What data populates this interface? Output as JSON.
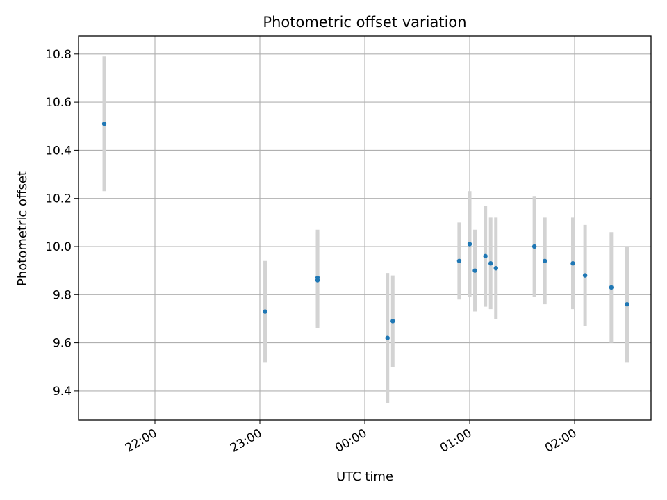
{
  "chart_data": {
    "type": "scatter",
    "title": "Photometric offset variation",
    "xlabel": "UTC time",
    "ylabel": "Photometric offset",
    "x_ticks": [
      "22:00",
      "23:00",
      "00:00",
      "01:00",
      "02:00"
    ],
    "y_ticks": [
      "9.4",
      "9.6",
      "9.8",
      "10.0",
      "10.2",
      "10.4",
      "10.6",
      "10.8"
    ],
    "grid": true,
    "point_color": "#1f77b4",
    "errorbar_color": "#d3d3d3",
    "points": [
      {
        "x": "21:31",
        "y": 10.51,
        "err": 0.28
      },
      {
        "x": "23:03",
        "y": 9.73,
        "err": 0.21
      },
      {
        "x": "23:33",
        "y": 9.87,
        "err": 0.2
      },
      {
        "x": "23:33",
        "y": 9.86,
        "err": 0.2
      },
      {
        "x": "00:13",
        "y": 9.62,
        "err": 0.27
      },
      {
        "x": "00:16",
        "y": 9.69,
        "err": 0.19
      },
      {
        "x": "00:54",
        "y": 9.94,
        "err": 0.16
      },
      {
        "x": "01:00",
        "y": 10.01,
        "err": 0.22
      },
      {
        "x": "01:03",
        "y": 9.9,
        "err": 0.17
      },
      {
        "x": "01:09",
        "y": 9.96,
        "err": 0.21
      },
      {
        "x": "01:12",
        "y": 9.93,
        "err": 0.19
      },
      {
        "x": "01:15",
        "y": 9.91,
        "err": 0.21
      },
      {
        "x": "01:37",
        "y": 10.0,
        "err": 0.21
      },
      {
        "x": "01:43",
        "y": 9.94,
        "err": 0.18
      },
      {
        "x": "01:59",
        "y": 9.93,
        "err": 0.19
      },
      {
        "x": "02:06",
        "y": 9.88,
        "err": 0.21
      },
      {
        "x": "02:21",
        "y": 9.83,
        "err": 0.23
      },
      {
        "x": "02:30",
        "y": 9.76,
        "err": 0.24
      }
    ]
  }
}
